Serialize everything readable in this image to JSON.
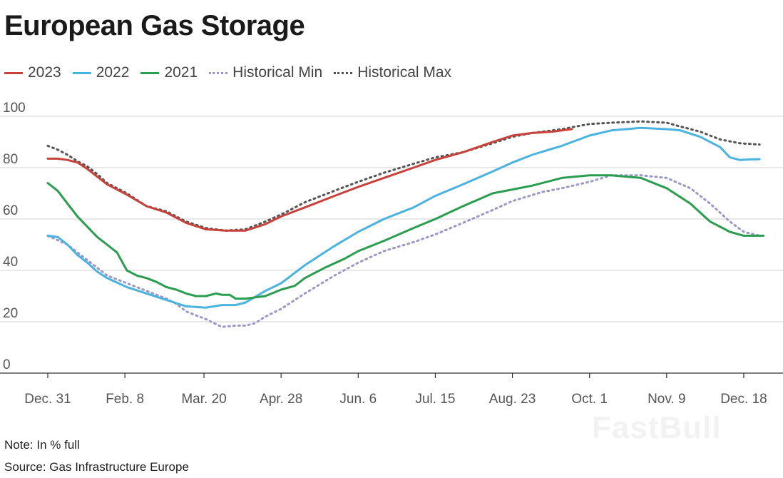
{
  "title": "European Gas Storage",
  "note": "Note: In % full",
  "source": "Source: Gas Infrastructure Europe",
  "watermark": "FastBull",
  "chart_data": {
    "type": "line",
    "title": "European Gas Storage",
    "ylim": [
      0,
      100
    ],
    "yticks": [
      0,
      20,
      40,
      60,
      80,
      100
    ],
    "xlim": [
      0,
      365
    ],
    "xticks": [
      {
        "label": "Dec. 31",
        "day": 0
      },
      {
        "label": "Feb. 8",
        "day": 39
      },
      {
        "label": "Mar. 20",
        "day": 79
      },
      {
        "label": "Apr. 28",
        "day": 118
      },
      {
        "label": "Jun. 6",
        "day": 157
      },
      {
        "label": "Jul. 15",
        "day": 196
      },
      {
        "label": "Aug. 23",
        "day": 235
      },
      {
        "label": "Oct. 1",
        "day": 274
      },
      {
        "label": "Nov. 9",
        "day": 313
      },
      {
        "label": "Dec. 18",
        "day": 352
      }
    ],
    "grid": true,
    "legend": "top-left",
    "series": [
      {
        "name": "Historical Min",
        "color": "#9b97c9",
        "style": "dotted",
        "x": [
          0,
          10,
          20,
          30,
          40,
          50,
          60,
          65,
          70,
          80,
          88,
          95,
          100,
          105,
          110,
          118,
          130,
          145,
          157,
          170,
          185,
          196,
          210,
          225,
          235,
          250,
          260,
          274,
          285,
          300,
          313,
          325,
          335,
          345,
          352,
          360
        ],
        "y": [
          53.5,
          50,
          44,
          38,
          35,
          32,
          29,
          27,
          24,
          21,
          18,
          18.5,
          18.5,
          19.5,
          22,
          25,
          31,
          38,
          43,
          47.5,
          51,
          54,
          58.5,
          63.5,
          67,
          70.5,
          72,
          74.5,
          77,
          77,
          76,
          72,
          66,
          59,
          55,
          53.5
        ]
      },
      {
        "name": "Historical Max",
        "color": "#555555",
        "style": "dotted",
        "x": [
          0,
          5,
          10,
          15,
          20,
          25,
          30,
          40,
          50,
          60,
          70,
          80,
          90,
          100,
          110,
          120,
          130,
          145,
          157,
          170,
          185,
          196,
          210,
          225,
          235,
          245,
          260,
          274,
          285,
          300,
          313,
          320,
          330,
          340,
          350,
          360
        ],
        "y": [
          88.5,
          87,
          85,
          82.5,
          80.5,
          77.5,
          74,
          70,
          65,
          63,
          59,
          56.5,
          55.5,
          56,
          59,
          62.5,
          66.5,
          71,
          74.5,
          78,
          81.5,
          84,
          86,
          89.5,
          92,
          93.5,
          95,
          97,
          97.5,
          98,
          97.5,
          96,
          94,
          91,
          89.5,
          89
        ]
      },
      {
        "name": "2023",
        "color": "#c8413a",
        "style": "solid",
        "x": [
          0,
          5,
          10,
          15,
          20,
          25,
          30,
          40,
          50,
          60,
          70,
          80,
          90,
          100,
          110,
          118,
          130,
          145,
          157,
          170,
          185,
          196,
          210,
          225,
          235,
          245,
          255,
          260,
          265
        ],
        "y": [
          83.5,
          83.5,
          83,
          82,
          79.5,
          76.5,
          73.5,
          69.5,
          65,
          62.5,
          58.5,
          56,
          55.5,
          55.5,
          58,
          61,
          64.5,
          69,
          72.5,
          76,
          80,
          83,
          86,
          90,
          92.5,
          93.5,
          94,
          94.5,
          95
        ]
      },
      {
        "name": "2022",
        "color": "#4ab3e0",
        "style": "solid",
        "x": [
          0,
          5,
          10,
          15,
          20,
          25,
          30,
          40,
          50,
          60,
          70,
          80,
          88,
          95,
          100,
          110,
          118,
          130,
          145,
          157,
          170,
          185,
          196,
          210,
          225,
          235,
          245,
          260,
          274,
          285,
          300,
          313,
          320,
          330,
          340,
          345,
          350,
          355,
          360
        ],
        "y": [
          53.5,
          53,
          50,
          46,
          43,
          39.5,
          37,
          33.5,
          31,
          28.5,
          26,
          25.5,
          26.5,
          26.5,
          27.5,
          32,
          35,
          42,
          49.5,
          55,
          60,
          64.5,
          69,
          73.5,
          78.5,
          82,
          85,
          88.5,
          92.5,
          94.5,
          95.5,
          95,
          94.5,
          92,
          88,
          84,
          83,
          83.2,
          83.3
        ]
      },
      {
        "name": "2021",
        "color": "#2a9d4f",
        "style": "solid",
        "x": [
          0,
          5,
          10,
          15,
          20,
          25,
          30,
          35,
          40,
          45,
          50,
          55,
          60,
          65,
          70,
          75,
          80,
          85,
          88,
          92,
          95,
          100,
          105,
          110,
          118,
          125,
          130,
          140,
          150,
          157,
          170,
          185,
          196,
          210,
          225,
          235,
          245,
          260,
          274,
          285,
          300,
          313,
          325,
          335,
          345,
          352,
          358,
          362
        ],
        "y": [
          74,
          71,
          66,
          61,
          57,
          53,
          50,
          47,
          40,
          38,
          37,
          35.5,
          33.5,
          32.5,
          31,
          30,
          30,
          31,
          30.5,
          30.5,
          29,
          29,
          29.5,
          30,
          32.5,
          34,
          37,
          41,
          44.5,
          47.5,
          51.5,
          56.5,
          60,
          65,
          70,
          71.5,
          73,
          76,
          77,
          77,
          76,
          72,
          66,
          59,
          55,
          53.5,
          53.5,
          53.5
        ]
      }
    ]
  }
}
